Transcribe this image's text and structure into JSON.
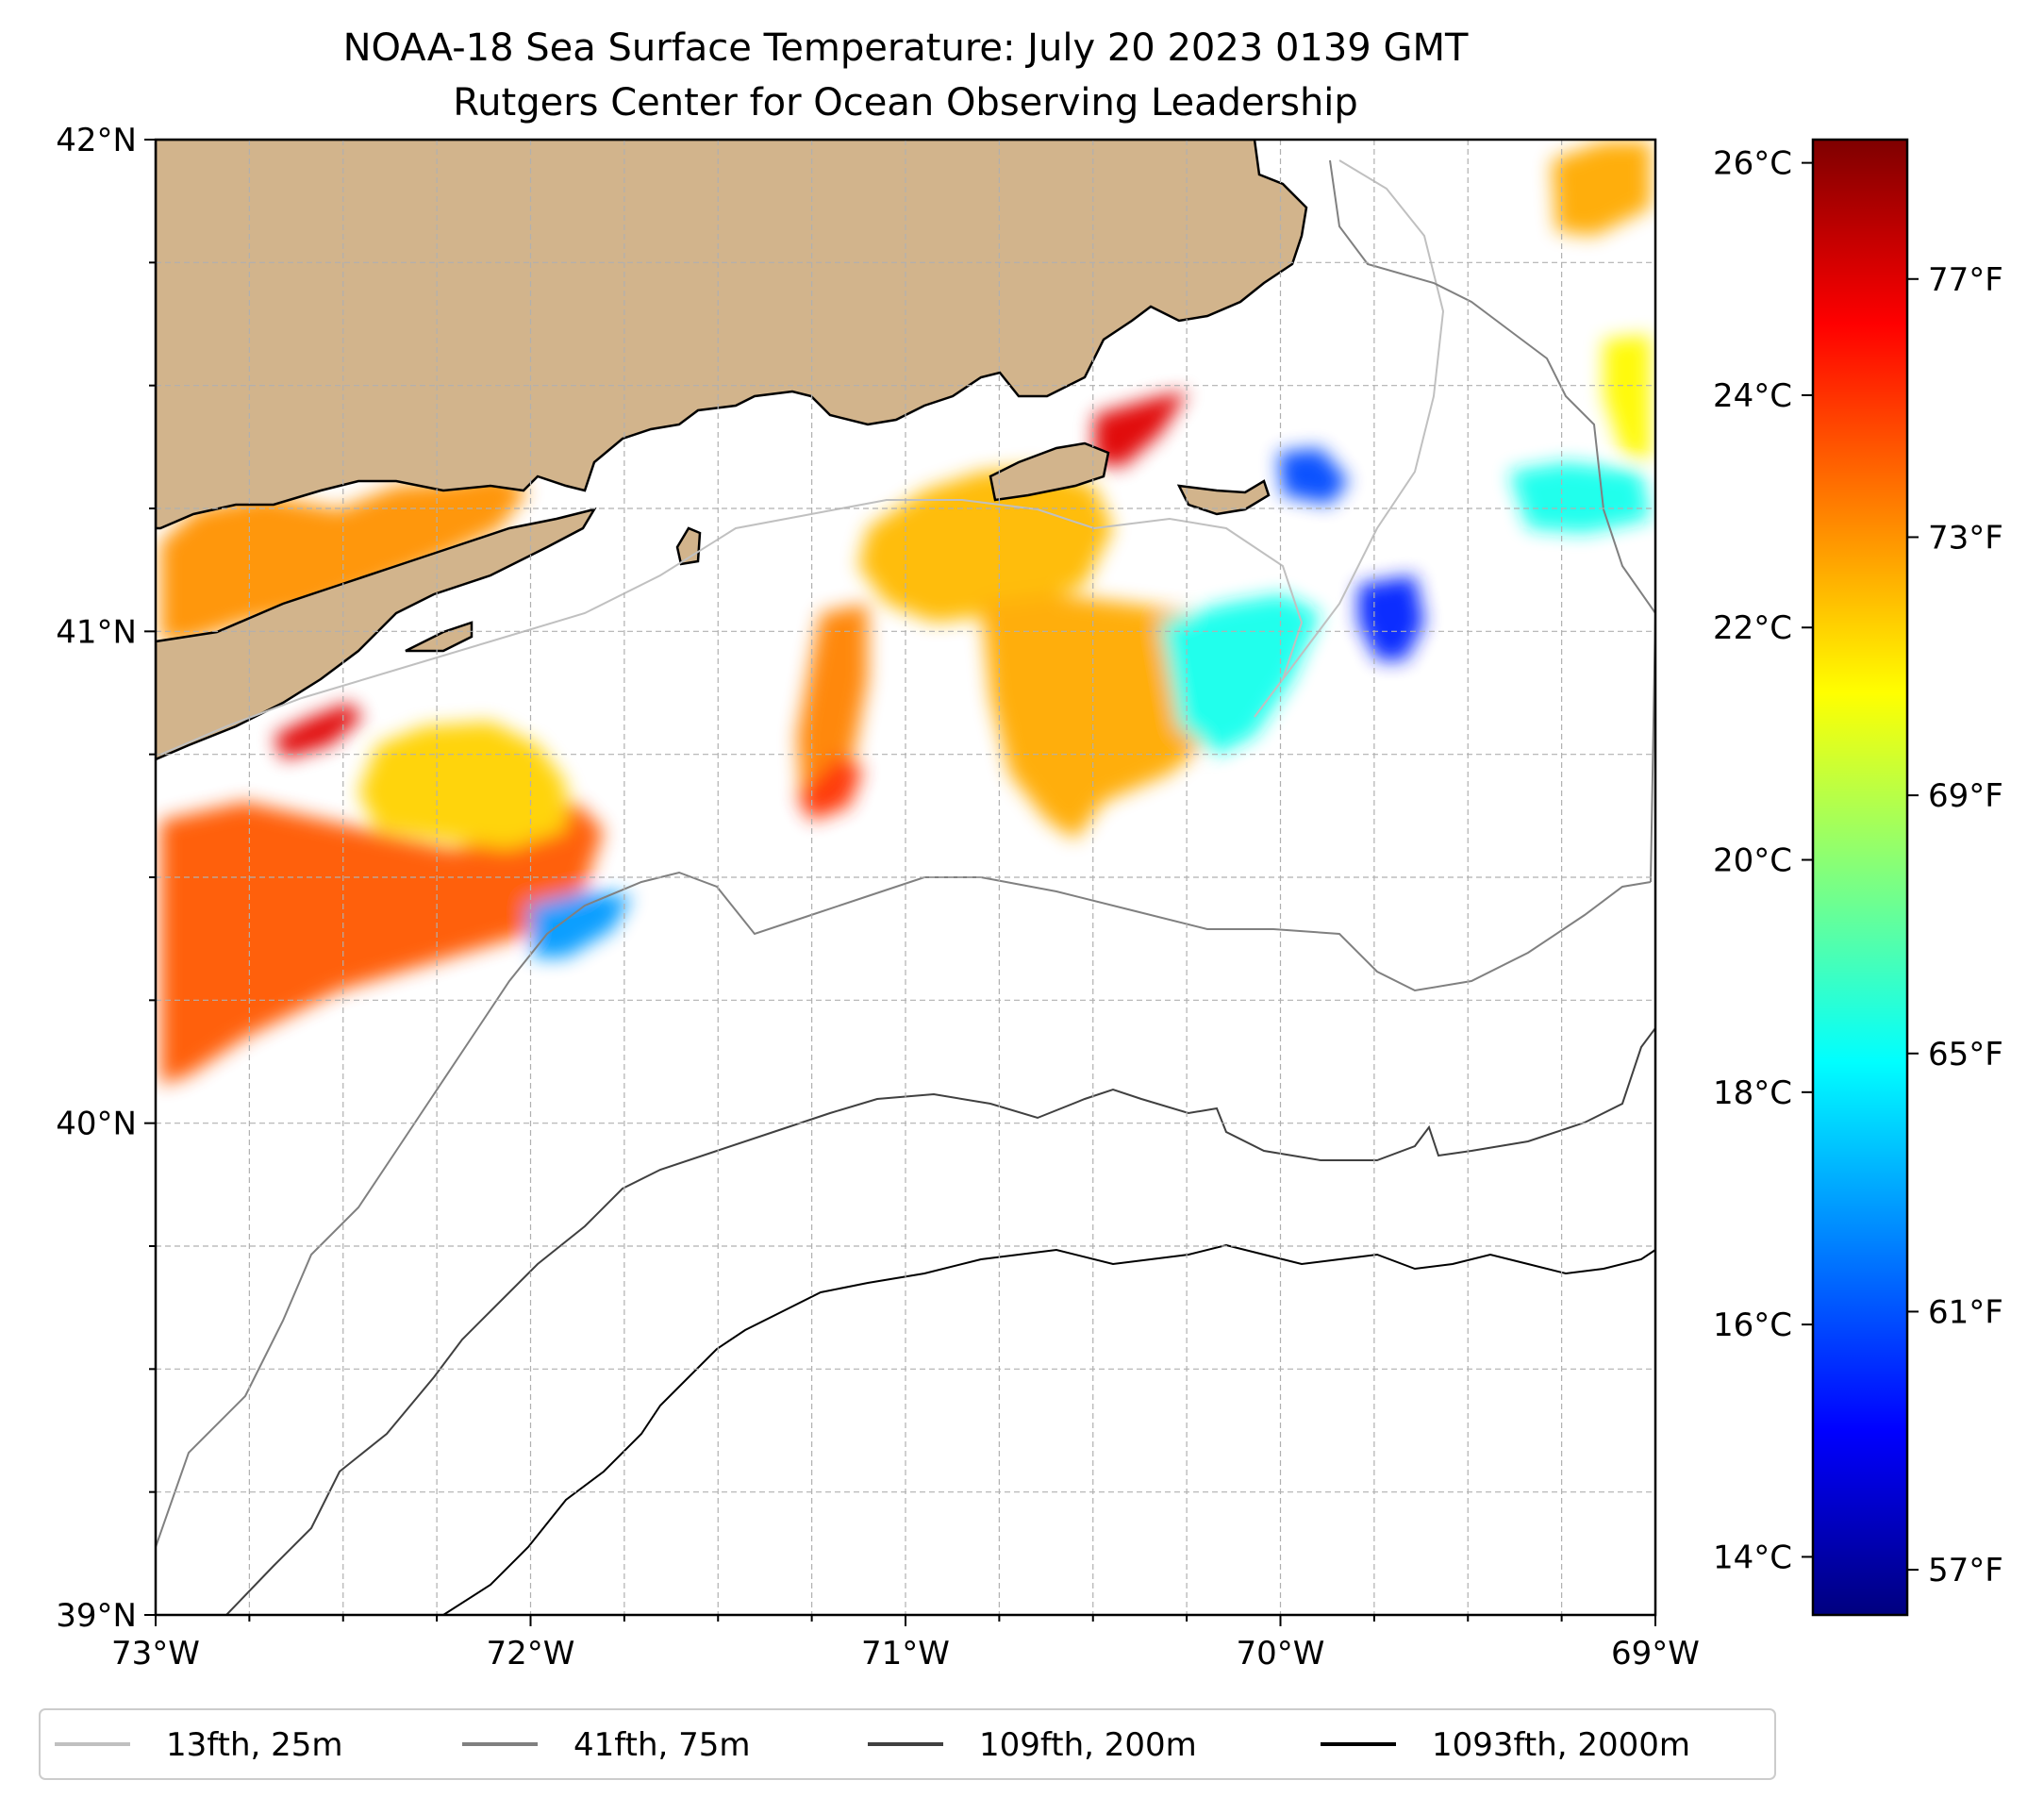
{
  "title": {
    "line1": "NOAA-18 Sea Surface Temperature: July 20 2023 0139 GMT",
    "line2": "Rutgers Center for Ocean Observing Leadership"
  },
  "map": {
    "lon_range": [
      -73,
      -69
    ],
    "lat_range": [
      39,
      42
    ],
    "x_ticks": [
      {
        "lon": -73,
        "label": "73°W"
      },
      {
        "lon": -72,
        "label": "72°W"
      },
      {
        "lon": -71,
        "label": "71°W"
      },
      {
        "lon": -70,
        "label": "70°W"
      },
      {
        "lon": -69,
        "label": "69°W"
      }
    ],
    "y_ticks": [
      {
        "lat": 42,
        "label": "42°N"
      },
      {
        "lat": 41,
        "label": "41°N"
      },
      {
        "lat": 40,
        "label": "40°N"
      },
      {
        "lat": 39,
        "label": "39°N"
      }
    ],
    "gridlines": true,
    "land_color": "#d2b48c",
    "water_color": "#ffffff"
  },
  "colorbar": {
    "colormap": "jet",
    "range_c": [
      13.5,
      26.2
    ],
    "celsius_ticks": [
      {
        "value": 14,
        "label": "14°C"
      },
      {
        "value": 16,
        "label": "16°C"
      },
      {
        "value": 18,
        "label": "18°C"
      },
      {
        "value": 20,
        "label": "20°C"
      },
      {
        "value": 22,
        "label": "22°C"
      },
      {
        "value": 24,
        "label": "24°C"
      },
      {
        "value": 26,
        "label": "26°C"
      }
    ],
    "fahrenheit_ticks": [
      {
        "value": 57,
        "label": "57°F"
      },
      {
        "value": 61,
        "label": "61°F"
      },
      {
        "value": 65,
        "label": "65°F"
      },
      {
        "value": 69,
        "label": "69°F"
      },
      {
        "value": 73,
        "label": "73°F"
      },
      {
        "value": 77,
        "label": "77°F"
      }
    ]
  },
  "legend": {
    "placement": "bottom",
    "items": [
      {
        "label": "13fth, 25m",
        "color": "#c0c0c0"
      },
      {
        "label": "41fth, 75m",
        "color": "#808080"
      },
      {
        "label": "109fth, 200m",
        "color": "#404040"
      },
      {
        "label": "1093fth, 2000m",
        "color": "#000000"
      }
    ]
  },
  "sst_patches": [
    {
      "name": "long-island-sound",
      "temp_c": 22.8
    },
    {
      "name": "south-shore-hotspot",
      "temp_c": 25.0
    },
    {
      "name": "offshore-southwest",
      "temp_c": 23.5
    },
    {
      "name": "shelf-west",
      "temp_c": 22.0
    },
    {
      "name": "shelf-west-cool-edge",
      "temp_c": 17.0
    },
    {
      "name": "block-island-area",
      "temp_c": 22.3
    },
    {
      "name": "vineyard-sound-warm",
      "temp_c": 25.0
    },
    {
      "name": "south-of-islands",
      "temp_c": 22.5
    },
    {
      "name": "nantucket-shoals-cool",
      "temp_c": 18.5
    },
    {
      "name": "nantucket-cold-core",
      "temp_c": 15.5
    },
    {
      "name": "nantucket-east",
      "temp_c": 16.0
    },
    {
      "name": "georges-west",
      "temp_c": 18.5
    },
    {
      "name": "gulf-of-maine-ne",
      "temp_c": 22.5
    },
    {
      "name": "east-edge",
      "temp_c": 21.5
    },
    {
      "name": "shelf-center-south",
      "temp_c": 23.0
    },
    {
      "name": "outer-spot",
      "temp_c": 24.0
    }
  ]
}
